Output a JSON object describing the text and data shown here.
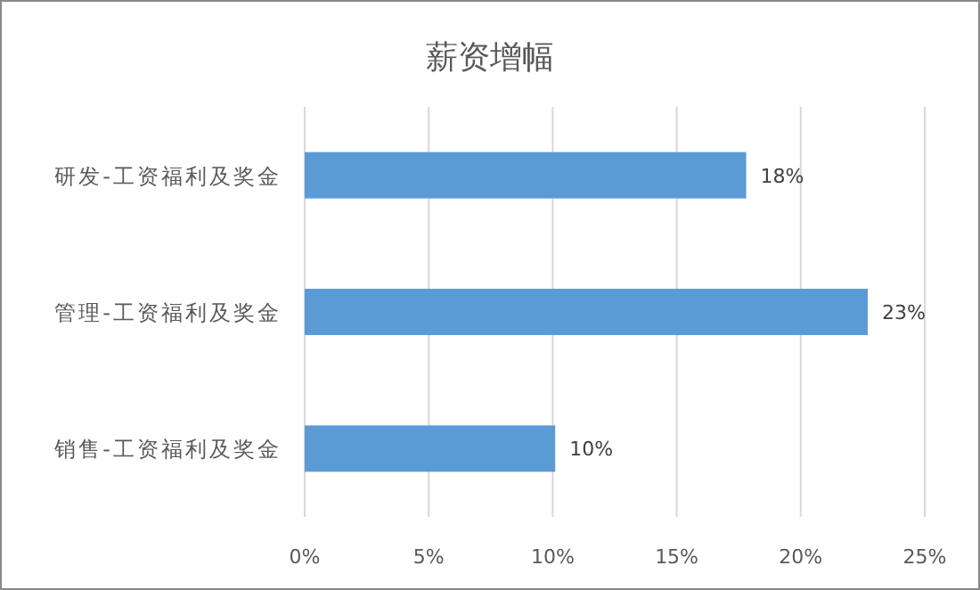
{
  "chart_data": {
    "type": "bar",
    "orientation": "horizontal",
    "title": "薪资增幅",
    "categories": [
      "研发-工资福利及奖金",
      "管理-工资福利及奖金",
      "销售-工资福利及奖金"
    ],
    "values": [
      17.8,
      22.7,
      10.1
    ],
    "value_labels": [
      "18%",
      "23%",
      "10%"
    ],
    "color": "#5b9bd5",
    "xlim": [
      0,
      25
    ],
    "xticks": [
      {
        "value": 0,
        "label": "0%"
      },
      {
        "value": 5,
        "label": "5%"
      },
      {
        "value": 10,
        "label": "10%"
      },
      {
        "value": 15,
        "label": "15%"
      },
      {
        "value": 20,
        "label": "20%"
      },
      {
        "value": 25,
        "label": "25%"
      }
    ],
    "grid": "x"
  }
}
